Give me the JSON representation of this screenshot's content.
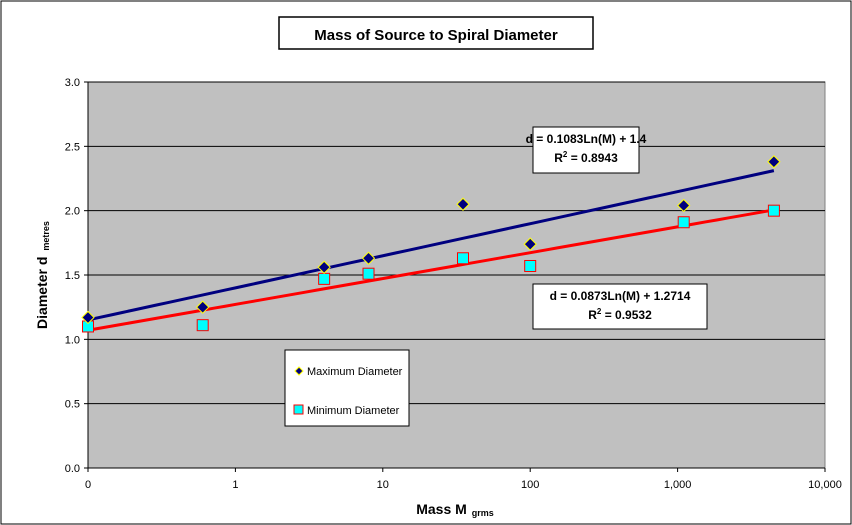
{
  "chart_data": {
    "type": "scatter",
    "title": "Mass of Source to Spiral Diameter",
    "xlabel_main": "Mass  M",
    "xlabel_sub": "grms",
    "ylabel_main": "Diameter  d",
    "ylabel_sub": "metres",
    "x_scale": "log",
    "xlim": [
      0.1,
      10000
    ],
    "ylim": [
      0,
      3
    ],
    "x_ticks": [
      0.1,
      1,
      10,
      100,
      1000,
      10000
    ],
    "x_tick_labels": [
      "0",
      "1",
      "10",
      "100",
      "1,000",
      "10,000"
    ],
    "y_ticks": [
      0,
      0.5,
      1,
      1.5,
      2,
      2.5,
      3
    ],
    "y_tick_labels": [
      "0.0",
      "0.5",
      "1.0",
      "1.5",
      "2.0",
      "2.5",
      "3.0"
    ],
    "grid": "horizontal",
    "plot_background": "#c0c0c0",
    "legend_position": "lower-left",
    "series": [
      {
        "name": "Maximum Diameter",
        "marker": "diamond",
        "color": "#00007f",
        "edge": "#ffff00",
        "trend_color": "#00007f",
        "trend": {
          "a": 0.1083,
          "b": 1.4
        },
        "trend_label": "d = 0.1083Ln(M) + 1.4",
        "r2_value": " = 0.8943",
        "x": [
          0.1,
          0.6,
          4,
          8,
          35,
          100,
          1100,
          4500
        ],
        "values": [
          1.17,
          1.25,
          1.56,
          1.63,
          2.05,
          1.74,
          2.04,
          2.38
        ]
      },
      {
        "name": "Minimum Diameter",
        "marker": "square",
        "color": "#00ffff",
        "edge": "#ff0000",
        "trend_color": "#ff0000",
        "trend": {
          "a": 0.0873,
          "b": 1.2714
        },
        "trend_label": "d = 0.0873Ln(M) + 1.2714",
        "r2_value": " = 0.9532",
        "x": [
          0.1,
          0.6,
          4,
          8,
          35,
          100,
          1100,
          4500
        ],
        "values": [
          1.1,
          1.11,
          1.47,
          1.51,
          1.63,
          1.57,
          1.91,
          2.0
        ]
      }
    ]
  }
}
